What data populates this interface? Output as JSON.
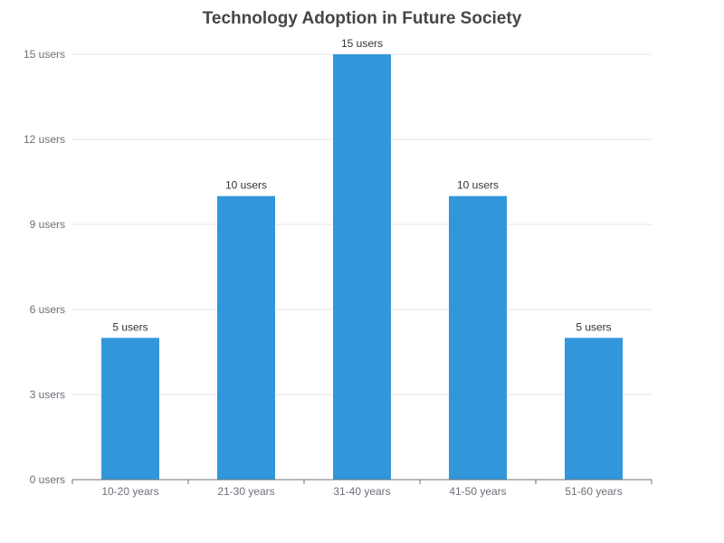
{
  "chart_data": {
    "type": "bar",
    "title": "Technology Adoption in Future Society",
    "xlabel": "",
    "ylabel": "",
    "categories": [
      "10-20 years",
      "21-30 years",
      "31-40 years",
      "41-50 years",
      "51-60 years"
    ],
    "values": [
      5,
      10,
      15,
      10,
      5
    ],
    "value_unit": "users",
    "y_ticks": [
      0,
      3,
      6,
      9,
      12,
      15
    ],
    "ylim": [
      0,
      15
    ],
    "grid": true,
    "legend": "none",
    "bar_color": "#3296db"
  }
}
